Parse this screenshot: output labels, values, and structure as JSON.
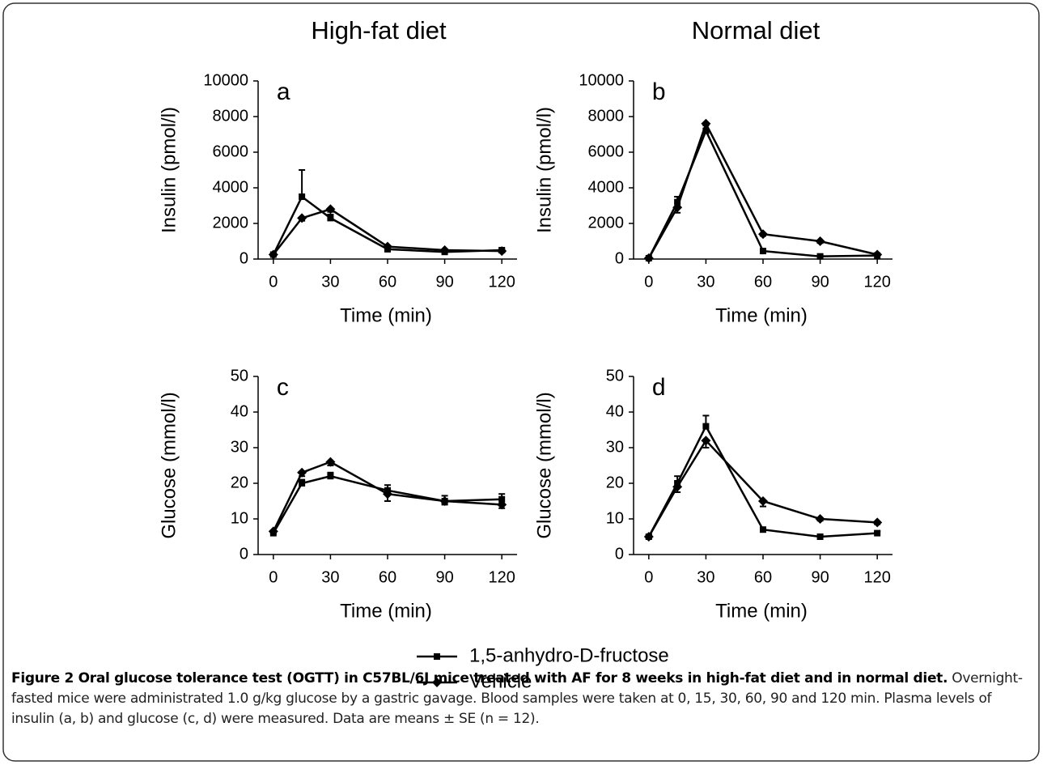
{
  "columns": [
    "High-fat diet",
    "Normal diet"
  ],
  "legend": [
    {
      "name": "1,5-anhydro-D-fructose",
      "marker": "square"
    },
    {
      "name": "Vehicle",
      "marker": "diamond"
    }
  ],
  "caption": {
    "title": "Figure 2 Oral glucose tolerance test (OGTT) in C57BL/6J mice treated with AF for 8 weeks in high-fat diet and in normal diet.",
    "body": "Overnight-fasted mice were administrated 1.0 g/kg glucose by a gastric gavage. Blood samples were taken at 0, 15, 30, 60, 90 and 120 min. Plasma levels of insulin (a, b) and glucose (c, d) were measured. Data are means ± SE (n = 12)."
  },
  "chart_data": [
    {
      "type": "line",
      "panel": "a",
      "xlabel": "Time (min)",
      "ylabel": "Insulin (pmol/l)",
      "x": [
        0,
        15,
        30,
        60,
        90,
        120
      ],
      "series": [
        {
          "marker": "square",
          "color": "#000000",
          "error_side": "up",
          "values": [
            250,
            3500,
            2300,
            550,
            400,
            500
          ],
          "errors": [
            50,
            1500,
            200,
            100,
            80,
            80
          ]
        },
        {
          "marker": "diamond",
          "color": "#000000",
          "error_side": "down",
          "values": [
            250,
            2300,
            2800,
            700,
            500,
            450
          ],
          "errors": [
            50,
            150,
            150,
            100,
            80,
            80
          ]
        }
      ],
      "xlim": [
        -8,
        128
      ],
      "ylim": [
        0,
        10000
      ],
      "xticks": [
        0,
        30,
        60,
        90,
        120
      ],
      "yticks": [
        0,
        2000,
        4000,
        6000,
        8000,
        10000
      ]
    },
    {
      "type": "line",
      "panel": "b",
      "xlabel": "Time (min)",
      "ylabel": "Insulin (pmol/l)",
      "x": [
        0,
        15,
        30,
        60,
        90,
        120
      ],
      "series": [
        {
          "marker": "square",
          "color": "#000000",
          "error_side": "up",
          "values": [
            50,
            3200,
            7200,
            450,
            150,
            200
          ],
          "errors": [
            30,
            300,
            300,
            80,
            50,
            50
          ]
        },
        {
          "marker": "diamond",
          "color": "#000000",
          "error_side": "down",
          "values": [
            50,
            2900,
            7600,
            1400,
            1000,
            250
          ],
          "errors": [
            30,
            300,
            300,
            100,
            100,
            50
          ]
        }
      ],
      "xlim": [
        -8,
        128
      ],
      "ylim": [
        0,
        10000
      ],
      "xticks": [
        0,
        30,
        60,
        90,
        120
      ],
      "yticks": [
        0,
        2000,
        4000,
        6000,
        8000,
        10000
      ]
    },
    {
      "type": "line",
      "panel": "c",
      "xlabel": "Time (min)",
      "ylabel": "Glucose (mmol/l)",
      "x": [
        0,
        15,
        30,
        60,
        90,
        120
      ],
      "series": [
        {
          "marker": "square",
          "color": "#000000",
          "error_side": "up",
          "values": [
            6,
            20,
            22,
            18,
            15,
            15.5
          ],
          "errors": [
            0.5,
            1,
            1,
            1.5,
            1.5,
            1.5
          ]
        },
        {
          "marker": "diamond",
          "color": "#000000",
          "error_side": "down",
          "values": [
            6.5,
            23,
            26,
            17,
            15,
            14
          ],
          "errors": [
            0.5,
            1,
            1,
            2,
            1,
            1
          ]
        }
      ],
      "xlim": [
        -8,
        128
      ],
      "ylim": [
        0,
        50
      ],
      "xticks": [
        0,
        30,
        60,
        90,
        120
      ],
      "yticks": [
        0,
        10,
        20,
        30,
        40,
        50
      ]
    },
    {
      "type": "line",
      "panel": "d",
      "xlabel": "Time (min)",
      "ylabel": "Glucose (mmol/l)",
      "x": [
        0,
        15,
        30,
        60,
        90,
        120
      ],
      "series": [
        {
          "marker": "square",
          "color": "#000000",
          "error_side": "up",
          "values": [
            5,
            20,
            36,
            7,
            5,
            6
          ],
          "errors": [
            0.5,
            2,
            3,
            0.5,
            0.5,
            0.5
          ]
        },
        {
          "marker": "diamond",
          "color": "#000000",
          "error_side": "down",
          "values": [
            5,
            19,
            32,
            15,
            10,
            9
          ],
          "errors": [
            0.5,
            1.5,
            2,
            1.5,
            0.5,
            0.5
          ]
        }
      ],
      "xlim": [
        -8,
        128
      ],
      "ylim": [
        0,
        50
      ],
      "xticks": [
        0,
        30,
        60,
        90,
        120
      ],
      "yticks": [
        0,
        10,
        20,
        30,
        40,
        50
      ]
    }
  ]
}
